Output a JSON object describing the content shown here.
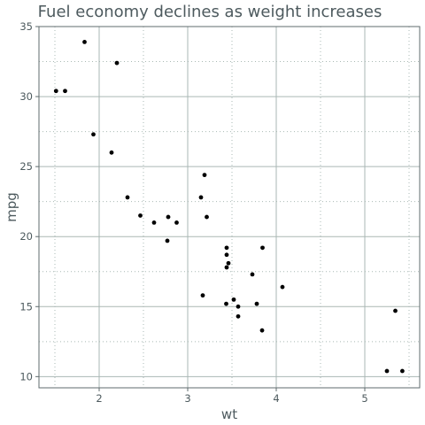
{
  "chart_data": {
    "type": "scatter",
    "title": "Fuel economy declines as weight increases",
    "xlabel": "wt",
    "ylabel": "mpg",
    "xlim": [
      1.32,
      5.62
    ],
    "ylim": [
      9.2,
      35.0
    ],
    "x_ticks": [
      2,
      3,
      4,
      5
    ],
    "y_ticks": [
      10,
      15,
      20,
      25,
      30,
      35
    ],
    "x_tick_labels": [
      "2",
      "3",
      "4",
      "5"
    ],
    "y_tick_labels": [
      "10",
      "15",
      "20",
      "25",
      "30",
      "35"
    ],
    "grid": true,
    "points": [
      {
        "x": 2.62,
        "y": 21.0
      },
      {
        "x": 2.875,
        "y": 21.0
      },
      {
        "x": 2.32,
        "y": 22.8
      },
      {
        "x": 3.215,
        "y": 21.4
      },
      {
        "x": 3.44,
        "y": 18.7
      },
      {
        "x": 3.46,
        "y": 18.1
      },
      {
        "x": 3.57,
        "y": 14.3
      },
      {
        "x": 3.19,
        "y": 24.4
      },
      {
        "x": 3.15,
        "y": 22.8
      },
      {
        "x": 3.44,
        "y": 19.2
      },
      {
        "x": 3.44,
        "y": 17.8
      },
      {
        "x": 4.07,
        "y": 16.4
      },
      {
        "x": 3.73,
        "y": 17.3
      },
      {
        "x": 3.78,
        "y": 15.2
      },
      {
        "x": 5.25,
        "y": 10.4
      },
      {
        "x": 5.424,
        "y": 10.4
      },
      {
        "x": 5.345,
        "y": 14.7
      },
      {
        "x": 2.2,
        "y": 32.4
      },
      {
        "x": 1.615,
        "y": 30.4
      },
      {
        "x": 1.835,
        "y": 33.9
      },
      {
        "x": 2.465,
        "y": 21.5
      },
      {
        "x": 3.52,
        "y": 15.5
      },
      {
        "x": 3.435,
        "y": 15.2
      },
      {
        "x": 3.84,
        "y": 13.3
      },
      {
        "x": 3.845,
        "y": 19.2
      },
      {
        "x": 1.935,
        "y": 27.3
      },
      {
        "x": 2.14,
        "y": 26.0
      },
      {
        "x": 1.513,
        "y": 30.4
      },
      {
        "x": 3.17,
        "y": 15.8
      },
      {
        "x": 2.77,
        "y": 19.7
      },
      {
        "x": 3.57,
        "y": 15.0
      },
      {
        "x": 2.78,
        "y": 21.4
      }
    ],
    "colors": {
      "point": "#000000",
      "major_grid": "#aab7b4",
      "minor_grid": "#a9b9b4",
      "panel_border": "#5f6b6e",
      "text": "#4d5a5e"
    }
  }
}
